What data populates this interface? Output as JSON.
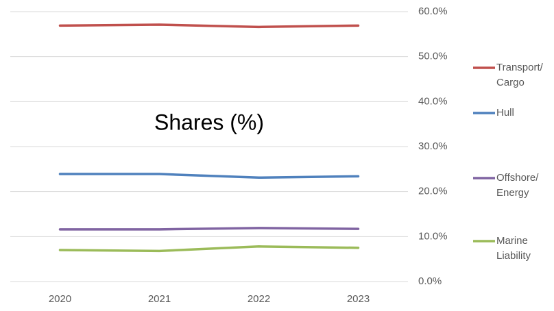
{
  "chart_data": {
    "type": "line",
    "title": "Shares (%)",
    "categories": [
      "2020",
      "2021",
      "2022",
      "2023"
    ],
    "series": [
      {
        "name": "Transport/ Cargo",
        "color": "#c0504d",
        "values": [
          56.9,
          57.1,
          56.6,
          56.9
        ]
      },
      {
        "name": "Hull",
        "color": "#4f81bd",
        "values": [
          23.9,
          23.9,
          23.1,
          23.4
        ]
      },
      {
        "name": "Offshore/ Energy",
        "color": "#8064a2",
        "values": [
          11.6,
          11.6,
          11.9,
          11.7
        ]
      },
      {
        "name": "Marine Liability",
        "color": "#9bbb59",
        "values": [
          7.0,
          6.8,
          7.8,
          7.5
        ]
      }
    ],
    "ylim": [
      0,
      60
    ],
    "yticks": [
      {
        "value": 0,
        "label": "0.0%"
      },
      {
        "value": 10,
        "label": "10.0%"
      },
      {
        "value": 20,
        "label": "20.0%"
      },
      {
        "value": 30,
        "label": "30.0%"
      },
      {
        "value": 40,
        "label": "40.0%"
      },
      {
        "value": 50,
        "label": "50.0%"
      },
      {
        "value": 60,
        "label": "60.0%"
      }
    ],
    "grid": true,
    "legend": "right"
  }
}
